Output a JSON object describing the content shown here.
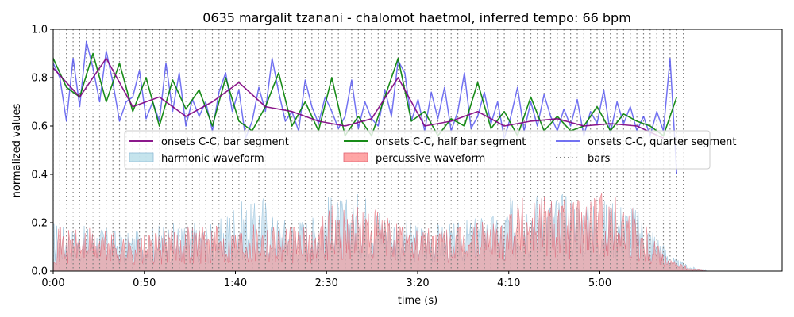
{
  "chart_data": {
    "type": "line",
    "title": "0635 margalit tzanani - chalomot haetmol, inferred tempo: 66 bpm",
    "xlabel": "time (s)",
    "ylabel": "normalized values",
    "xlim": [
      0,
      400
    ],
    "ylim": [
      0,
      1
    ],
    "xticks": [
      {
        "value": 0,
        "label": "0:00"
      },
      {
        "value": 50,
        "label": "0:50"
      },
      {
        "value": 100,
        "label": "1:40"
      },
      {
        "value": 150,
        "label": "2:30"
      },
      {
        "value": 200,
        "label": "3:20"
      },
      {
        "value": 250,
        "label": "4:10"
      },
      {
        "value": 300,
        "label": "5:00"
      }
    ],
    "yticks": [
      {
        "value": 0.0,
        "label": "0.0"
      },
      {
        "value": 0.2,
        "label": "0.2"
      },
      {
        "value": 0.4,
        "label": "0.4"
      },
      {
        "value": 0.6,
        "label": "0.6"
      },
      {
        "value": 0.8,
        "label": "0.8"
      },
      {
        "value": 1.0,
        "label": "1.0"
      }
    ],
    "grid": false,
    "legend": {
      "placement": "center",
      "columns": 3,
      "entries": [
        {
          "label": "onsets C-C, bar segment",
          "kind": "line",
          "color": "#800080"
        },
        {
          "label": "onsets C-C, half bar segment",
          "kind": "line",
          "color": "#008000"
        },
        {
          "label": "onsets C-C, quarter segment",
          "kind": "line",
          "color": "#4444ee"
        },
        {
          "label": "harmonic waveform",
          "kind": "area",
          "color": "#add8e6"
        },
        {
          "label": "percussive waveform",
          "kind": "area",
          "color": "#ff8080"
        },
        {
          "label": "bars",
          "kind": "dotted",
          "color": "#808080"
        }
      ]
    },
    "bars": {
      "start": 0,
      "end": 347,
      "interval": 3.64
    },
    "harmonic_waveform": {
      "x": [
        0,
        10,
        20,
        30,
        40,
        50,
        60,
        70,
        80,
        90,
        100,
        110,
        115,
        120,
        130,
        140,
        145,
        150,
        160,
        170,
        180,
        190,
        200,
        210,
        220,
        230,
        240,
        245,
        250,
        260,
        270,
        280,
        290,
        300,
        310,
        320,
        330,
        340,
        350,
        360
      ],
      "y": [
        0.21,
        0.18,
        0.19,
        0.18,
        0.16,
        0.17,
        0.2,
        0.2,
        0.21,
        0.2,
        0.3,
        0.28,
        0.34,
        0.24,
        0.22,
        0.23,
        0.24,
        0.32,
        0.3,
        0.34,
        0.27,
        0.22,
        0.2,
        0.2,
        0.2,
        0.22,
        0.25,
        0.21,
        0.3,
        0.34,
        0.34,
        0.33,
        0.32,
        0.3,
        0.3,
        0.28,
        0.18,
        0.06,
        0.02,
        0.0
      ]
    },
    "percussive_waveform": {
      "x": [
        0,
        10,
        20,
        30,
        40,
        50,
        60,
        70,
        80,
        90,
        100,
        110,
        115,
        120,
        130,
        140,
        145,
        150,
        160,
        170,
        180,
        190,
        200,
        210,
        220,
        230,
        240,
        245,
        250,
        260,
        270,
        280,
        290,
        300,
        310,
        320,
        330,
        340,
        350,
        360
      ],
      "y": [
        0.19,
        0.17,
        0.18,
        0.17,
        0.15,
        0.15,
        0.17,
        0.19,
        0.2,
        0.19,
        0.19,
        0.21,
        0.22,
        0.21,
        0.19,
        0.18,
        0.2,
        0.28,
        0.27,
        0.27,
        0.25,
        0.2,
        0.19,
        0.18,
        0.18,
        0.2,
        0.22,
        0.2,
        0.3,
        0.32,
        0.33,
        0.31,
        0.32,
        0.33,
        0.32,
        0.27,
        0.16,
        0.05,
        0.01,
        0.0
      ]
    },
    "series": [
      {
        "name": "onsets C-C, quarter segment",
        "color": "#4444ee",
        "x": [
          0,
          3.64,
          7.28,
          10.92,
          14.56,
          18.2,
          21.84,
          25.48,
          29.12,
          32.76,
          36.4,
          40.04,
          43.68,
          47.32,
          50.96,
          54.6,
          58.24,
          61.88,
          65.52,
          69.16,
          72.8,
          76.44,
          80.08,
          83.72,
          87.36,
          91,
          94.64,
          98.28,
          101.92,
          105.56,
          109.2,
          112.84,
          116.48,
          120.12,
          123.76,
          127.4,
          131.04,
          134.68,
          138.32,
          141.96,
          145.6,
          149.24,
          152.88,
          156.52,
          160.16,
          163.8,
          167.44,
          171.08,
          174.72,
          178.36,
          182,
          185.64,
          189.28,
          192.92,
          196.56,
          200.2,
          203.84,
          207.48,
          211.12,
          214.76,
          218.4,
          222.04,
          225.68,
          229.32,
          232.96,
          236.6,
          240.24,
          243.88,
          247.52,
          251.16,
          254.8,
          258.44,
          262.08,
          265.72,
          269.36,
          273,
          276.64,
          280.28,
          283.92,
          287.56,
          291.2,
          294.84,
          298.48,
          302.12,
          305.76,
          309.4,
          313.04,
          316.68,
          320.32,
          323.96,
          327.6,
          331.24,
          334.88,
          338.52,
          342.16
        ],
        "y": [
          0.86,
          0.8,
          0.62,
          0.88,
          0.68,
          0.95,
          0.84,
          0.7,
          0.91,
          0.78,
          0.62,
          0.7,
          0.72,
          0.83,
          0.63,
          0.7,
          0.62,
          0.86,
          0.66,
          0.82,
          0.6,
          0.71,
          0.64,
          0.7,
          0.58,
          0.74,
          0.82,
          0.66,
          0.75,
          0.55,
          0.62,
          0.76,
          0.66,
          0.88,
          0.74,
          0.62,
          0.66,
          0.58,
          0.79,
          0.68,
          0.61,
          0.72,
          0.66,
          0.59,
          0.64,
          0.79,
          0.59,
          0.7,
          0.63,
          0.6,
          0.75,
          0.64,
          0.87,
          0.82,
          0.62,
          0.71,
          0.58,
          0.74,
          0.63,
          0.76,
          0.58,
          0.66,
          0.82,
          0.59,
          0.64,
          0.74,
          0.61,
          0.7,
          0.55,
          0.64,
          0.76,
          0.58,
          0.7,
          0.6,
          0.73,
          0.64,
          0.58,
          0.67,
          0.6,
          0.71,
          0.56,
          0.66,
          0.61,
          0.75,
          0.57,
          0.7,
          0.61,
          0.68,
          0.58,
          0.64,
          0.56,
          0.66,
          0.58,
          0.88,
          0.4
        ]
      },
      {
        "name": "onsets C-C, half bar segment",
        "color": "#008000",
        "x": [
          0,
          7.28,
          14.56,
          21.84,
          29.12,
          36.4,
          43.68,
          50.96,
          58.24,
          65.52,
          72.8,
          80.08,
          87.36,
          94.64,
          101.92,
          109.2,
          116.48,
          123.76,
          131.04,
          138.32,
          145.6,
          152.88,
          160.16,
          167.44,
          174.72,
          182,
          189.28,
          196.56,
          203.84,
          211.12,
          218.4,
          225.68,
          232.96,
          240.24,
          247.52,
          254.8,
          262.08,
          269.36,
          276.64,
          283.92,
          291.2,
          298.48,
          305.76,
          313.04,
          320.32,
          327.6,
          334.88,
          342.16
        ],
        "y": [
          0.88,
          0.76,
          0.72,
          0.9,
          0.7,
          0.86,
          0.66,
          0.8,
          0.6,
          0.79,
          0.67,
          0.75,
          0.6,
          0.8,
          0.62,
          0.58,
          0.68,
          0.82,
          0.6,
          0.7,
          0.58,
          0.8,
          0.56,
          0.64,
          0.56,
          0.72,
          0.88,
          0.62,
          0.66,
          0.56,
          0.63,
          0.6,
          0.78,
          0.59,
          0.66,
          0.56,
          0.72,
          0.58,
          0.64,
          0.58,
          0.6,
          0.68,
          0.58,
          0.65,
          0.62,
          0.6,
          0.56,
          0.72
        ]
      },
      {
        "name": "onsets C-C, bar segment",
        "color": "#800080",
        "x": [
          0,
          14.56,
          29.12,
          43.68,
          58.24,
          72.8,
          87.36,
          101.92,
          116.48,
          131.04,
          145.6,
          160.16,
          174.72,
          189.28,
          203.84,
          218.4,
          232.96,
          247.52,
          262.08,
          276.64,
          291.2,
          305.76,
          320.32,
          334.88
        ],
        "y": [
          0.84,
          0.72,
          0.88,
          0.68,
          0.72,
          0.64,
          0.7,
          0.78,
          0.68,
          0.66,
          0.62,
          0.6,
          0.63,
          0.8,
          0.6,
          0.62,
          0.66,
          0.6,
          0.62,
          0.63,
          0.6,
          0.61,
          0.6,
          0.55
        ]
      }
    ]
  }
}
